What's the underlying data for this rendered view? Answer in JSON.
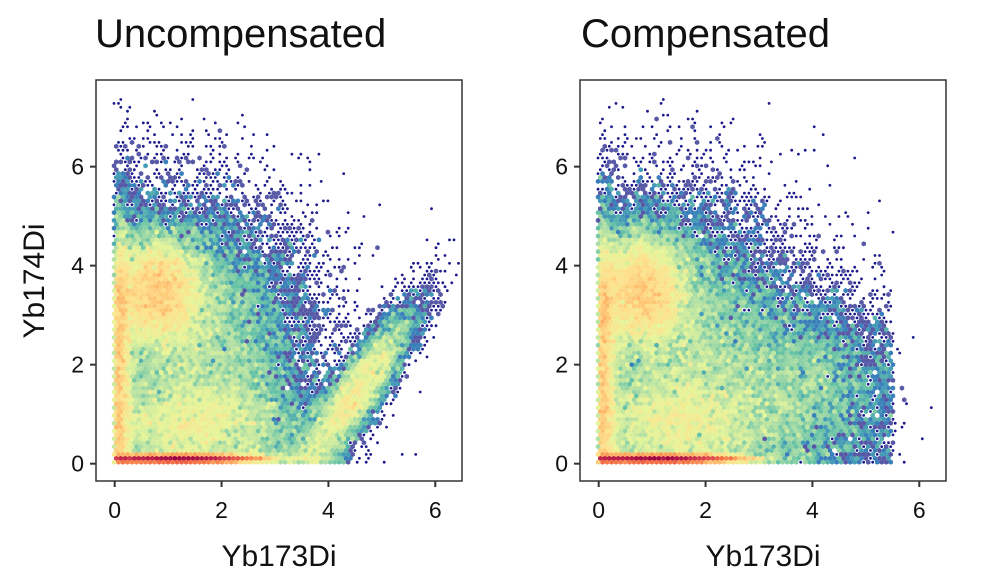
{
  "chart_data": [
    {
      "type": "heatmap",
      "subtype": "hexbin-density",
      "title": "Uncompensated",
      "xlabel": "Yb173Di",
      "ylabel": "Yb174Di",
      "xlim": [
        -0.35,
        6.5
      ],
      "ylim": [
        -0.35,
        7.75
      ],
      "xticks": [
        0,
        2,
        4,
        6
      ],
      "yticks": [
        0,
        2,
        4,
        6
      ],
      "density_components": [
        {
          "w": 0.2,
          "mx": 1.2,
          "my": 0.1,
          "sx": 0.8,
          "sy": 0.04,
          "rho": 0
        },
        {
          "w": 0.17,
          "mx": 0.8,
          "my": 3.5,
          "sx": 0.45,
          "sy": 0.6,
          "rho": 0
        },
        {
          "w": 0.08,
          "mx": 0.1,
          "my": 2.0,
          "sx": 0.12,
          "sy": 1.5,
          "rho": 0
        },
        {
          "w": 0.3,
          "mx": 1.6,
          "my": 2.4,
          "sx": 1.1,
          "sy": 1.5,
          "rho": -0.1
        },
        {
          "w": 0.12,
          "mx": 1.5,
          "my": 0.8,
          "sx": 1.0,
          "sy": 0.5,
          "rho": 0
        },
        {
          "w": 0.11,
          "mx": 4.5,
          "my": 1.4,
          "sx": 0.6,
          "sy": 0.9,
          "rho": 0.88
        }
      ]
    },
    {
      "type": "heatmap",
      "subtype": "hexbin-density",
      "title": "Compensated",
      "xlabel": "Yb173Di",
      "ylabel": "",
      "xlim": [
        -0.35,
        6.5
      ],
      "ylim": [
        -0.35,
        7.75
      ],
      "xticks": [
        0,
        2,
        4,
        6
      ],
      "yticks": [
        0,
        2,
        4,
        6
      ],
      "density_components": [
        {
          "w": 0.2,
          "mx": 1.1,
          "my": 0.1,
          "sx": 0.8,
          "sy": 0.04,
          "rho": 0
        },
        {
          "w": 0.17,
          "mx": 0.8,
          "my": 3.5,
          "sx": 0.45,
          "sy": 0.6,
          "rho": 0
        },
        {
          "w": 0.08,
          "mx": 0.1,
          "my": 2.0,
          "sx": 0.12,
          "sy": 1.5,
          "rho": 0
        },
        {
          "w": 0.3,
          "mx": 1.6,
          "my": 2.4,
          "sx": 1.1,
          "sy": 1.5,
          "rho": -0.1
        },
        {
          "w": 0.12,
          "mx": 1.5,
          "my": 0.8,
          "sx": 1.0,
          "sy": 0.5,
          "rho": 0
        },
        {
          "w": 0.11,
          "mx": 3.9,
          "my": 1.5,
          "sx": 0.9,
          "sy": 1.0,
          "rho": 0
        }
      ]
    }
  ],
  "palette": [
    "#1c1a8c",
    "#5e4fa2",
    "#3288bd",
    "#66c2a5",
    "#abdda4",
    "#e6f598",
    "#fee08b",
    "#fdae61",
    "#f46d43",
    "#d53e4f",
    "#9e0142"
  ]
}
